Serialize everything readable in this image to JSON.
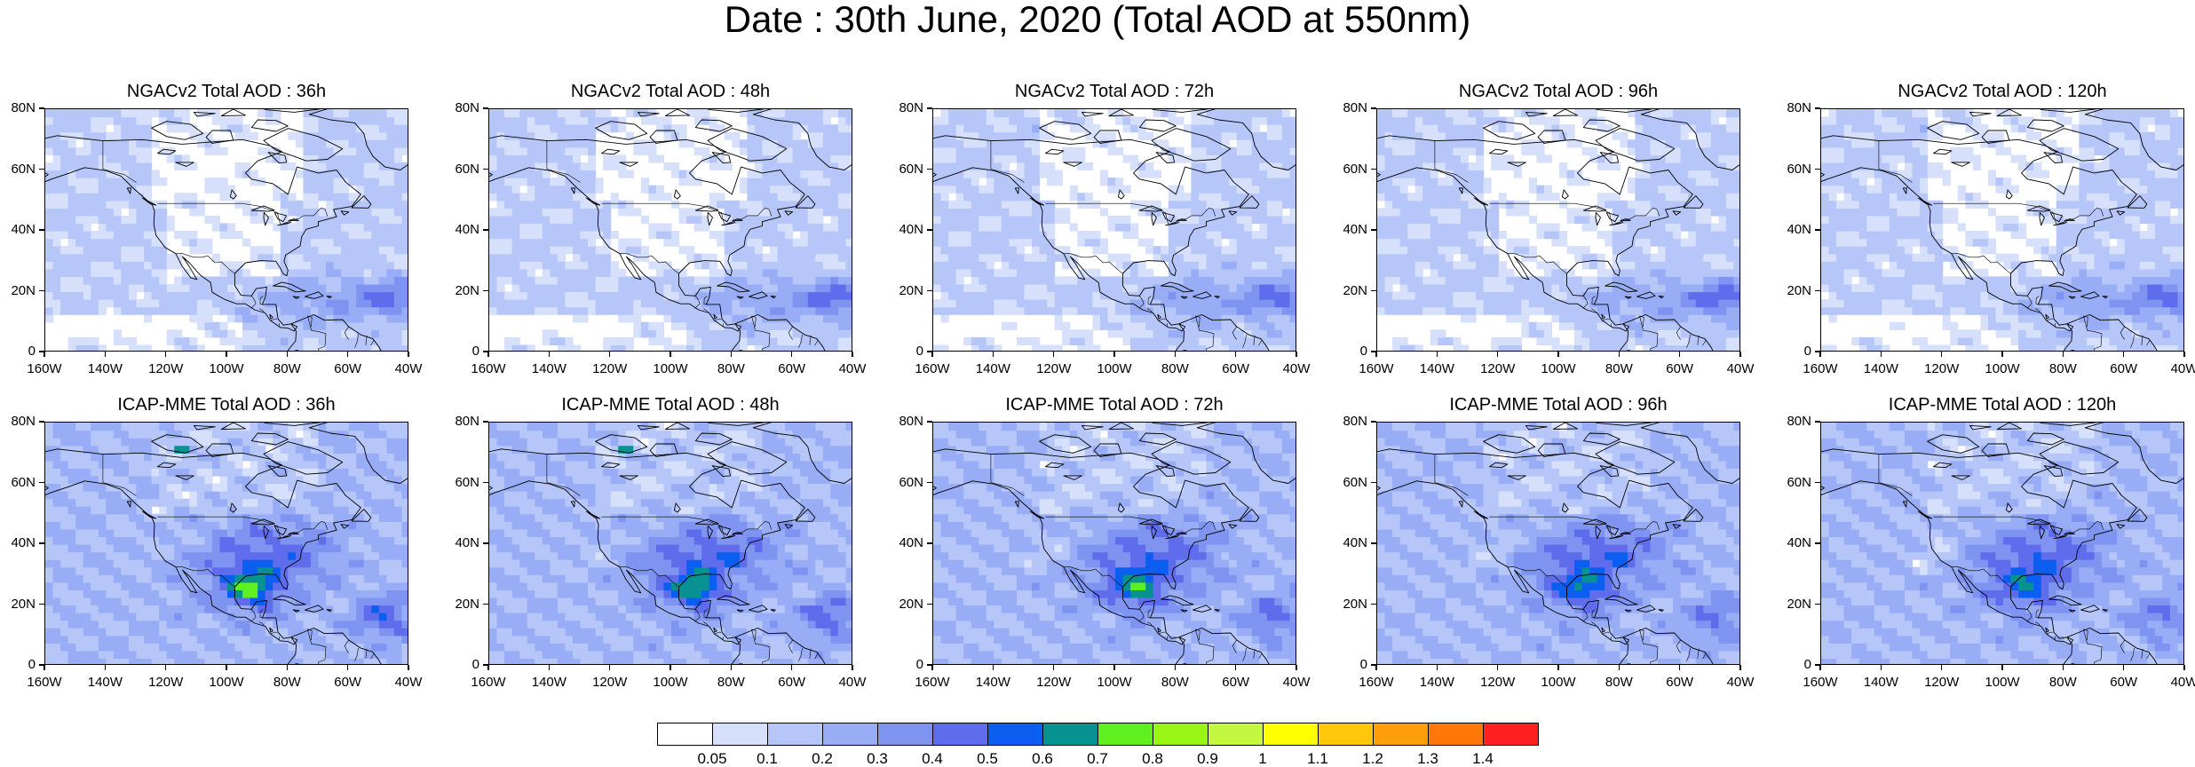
{
  "title": "Date : 30th June, 2020 (Total AOD at 550nm)",
  "panels": [
    {
      "title": "NGACv2 Total AOD : 36h",
      "model": "NGAC",
      "hour": 36
    },
    {
      "title": "NGACv2 Total AOD : 48h",
      "model": "NGAC",
      "hour": 48
    },
    {
      "title": "NGACv2 Total AOD : 72h",
      "model": "NGAC",
      "hour": 72
    },
    {
      "title": "NGACv2 Total AOD : 96h",
      "model": "NGAC",
      "hour": 96
    },
    {
      "title": "NGACv2 Total AOD : 120h",
      "model": "NGAC",
      "hour": 120
    },
    {
      "title": "ICAP-MME Total AOD : 36h",
      "model": "ICAP",
      "hour": 36
    },
    {
      "title": "ICAP-MME Total AOD : 48h",
      "model": "ICAP",
      "hour": 48
    },
    {
      "title": "ICAP-MME Total AOD : 72h",
      "model": "ICAP",
      "hour": 72
    },
    {
      "title": "ICAP-MME Total AOD : 96h",
      "model": "ICAP",
      "hour": 96
    },
    {
      "title": "ICAP-MME Total AOD : 120h",
      "model": "ICAP",
      "hour": 120
    }
  ],
  "axes": {
    "lat_labels": [
      "80N",
      "60N",
      "40N",
      "20N",
      "0"
    ],
    "lon_labels": [
      "160W",
      "140W",
      "120W",
      "100W",
      "80W",
      "60W",
      "40W"
    ],
    "lat_range": [
      0,
      80
    ],
    "lon_range": [
      -160,
      -40
    ]
  },
  "colorbar": {
    "colors": [
      "#ffffff",
      "#d6e0fb",
      "#b6c6f8",
      "#98adf5",
      "#7f94f1",
      "#5f6ded",
      "#0b5ef0",
      "#089191",
      "#5ef020",
      "#98f516",
      "#c4f840",
      "#ffff00",
      "#ffc60a",
      "#ff9e0a",
      "#ff7708",
      "#ff2020"
    ],
    "labels": [
      "0.05",
      "0.1",
      "0.2",
      "0.3",
      "0.4",
      "0.5",
      "0.6",
      "0.7",
      "0.8",
      "0.9",
      "1",
      "1.1",
      "1.2",
      "1.3",
      "1.4"
    ]
  }
}
